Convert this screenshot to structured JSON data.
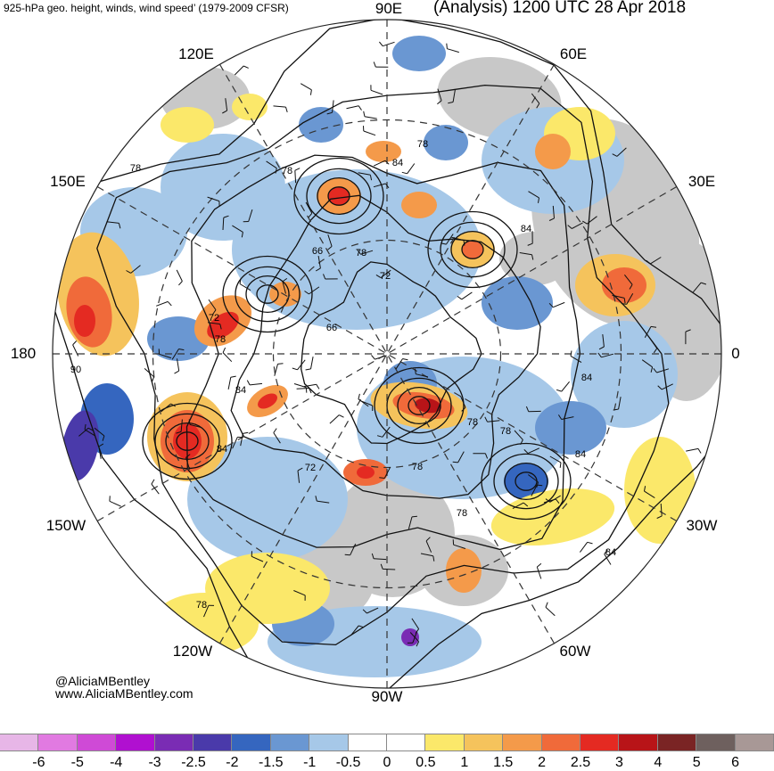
{
  "header": {
    "left_title": "925-hPa geo. height, winds, wind speed’ (1979-2009 CFSR)",
    "right_title": "(Analysis) 1200 UTC 28 Apr 2018"
  },
  "map": {
    "projection": "north-polar-stereographic",
    "center": "North Pole",
    "longitude_labels": [
      {
        "key": "90E",
        "text": "90E"
      },
      {
        "key": "60E",
        "text": "60E"
      },
      {
        "key": "120E",
        "text": "120E"
      },
      {
        "key": "150E",
        "text": "150E"
      },
      {
        "key": "30E",
        "text": "30E"
      },
      {
        "key": "180",
        "text": "180"
      },
      {
        "key": "0",
        "text": "0"
      },
      {
        "key": "150W",
        "text": "150W"
      },
      {
        "key": "30W",
        "text": "30W"
      },
      {
        "key": "120W",
        "text": "120W"
      },
      {
        "key": "60W",
        "text": "60W"
      },
      {
        "key": "90W",
        "text": "90W"
      }
    ],
    "contour_labels": [
      "78",
      "84",
      "78",
      "66",
      "78",
      "72",
      "72",
      "66",
      "78",
      "84",
      "84",
      "78",
      "84",
      "78",
      "72",
      "78",
      "84",
      "90",
      "78",
      "84",
      "78",
      "78",
      "84"
    ],
    "ocean_color": "#ffffff",
    "land_color": "#c8c8c8"
  },
  "credits": {
    "handle": "@AliciaMBentley",
    "website": "www.AliciaMBentley.com"
  },
  "colorbar": {
    "colors": [
      "#e7b6e7",
      "#e17ae1",
      "#cf4ad6",
      "#b010d0",
      "#7a2cb4",
      "#4a3aaa",
      "#3566bf",
      "#6a97d2",
      "#a6c8e8",
      "#ffffff",
      "#ffffff",
      "#fbe86a",
      "#f5c35c",
      "#f49a4a",
      "#f06a3a",
      "#e42a22",
      "#b81418",
      "#7a2424",
      "#6e605e",
      "#a89896"
    ],
    "labels": [
      "-6",
      "-5",
      "-4",
      "-3",
      "-2.5",
      "-2",
      "-1.5",
      "-1",
      "-0.5",
      "0",
      "0.5",
      "1",
      "1.5",
      "2",
      "2.5",
      "3",
      "4",
      "5",
      "6"
    ]
  }
}
